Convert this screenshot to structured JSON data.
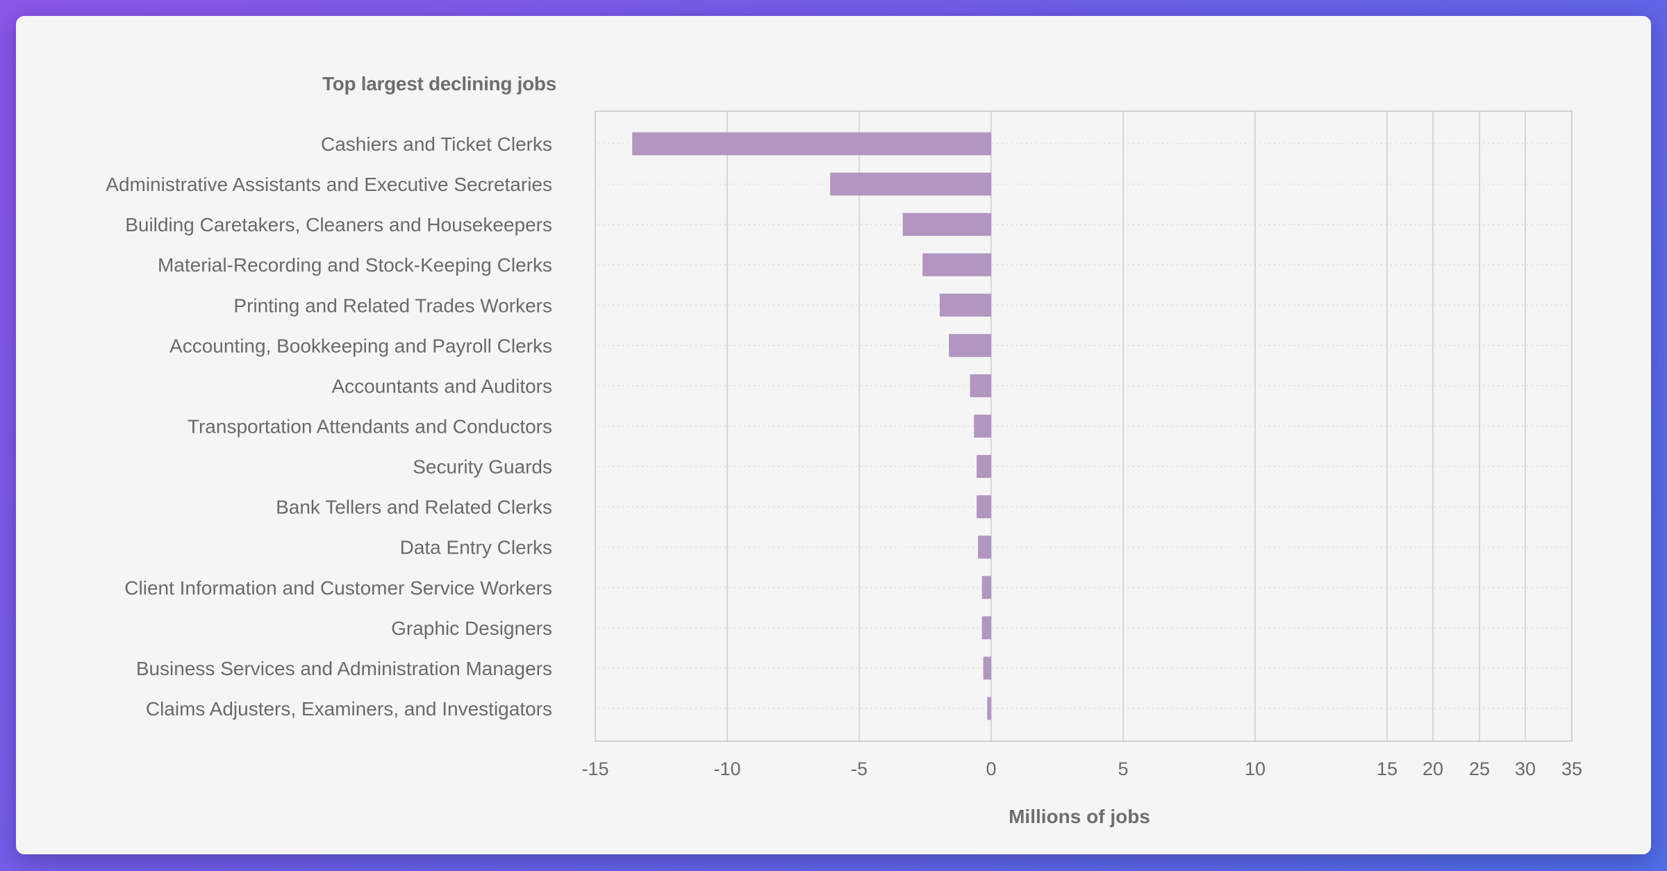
{
  "chart_data": {
    "type": "bar",
    "orientation": "horizontal",
    "title": "Top largest declining jobs",
    "xlabel": "Millions of jobs",
    "ylabel": "",
    "categories": [
      "Cashiers and Ticket Clerks",
      "Administrative Assistants and Executive Secretaries",
      "Building Caretakers, Cleaners and Housekeepers",
      "Material-Recording and Stock-Keeping Clerks",
      "Printing and Related Trades Workers",
      "Accounting, Bookkeeping and Payroll Clerks",
      "Accountants and Auditors",
      "Transportation Attendants and Conductors",
      "Security Guards",
      "Bank Tellers and Related Clerks",
      "Data Entry Clerks",
      "Client Information and Customer Service Workers",
      "Graphic Designers",
      "Business Services and Administration Managers",
      "Claims Adjusters, Examiners, and Investigators"
    ],
    "values": [
      -13.6,
      -6.1,
      -3.35,
      -2.6,
      -1.95,
      -1.6,
      -0.8,
      -0.65,
      -0.55,
      -0.55,
      -0.5,
      -0.35,
      -0.35,
      -0.3,
      -0.15
    ],
    "xticks": [
      -15,
      -10,
      -5,
      0,
      5,
      10,
      15,
      20,
      25,
      30,
      35
    ],
    "xlim": [
      -15,
      35
    ],
    "grid": true,
    "colors": {
      "bar": "#b196bf",
      "grid": "#cfcfcf",
      "frame": "#c4c4c4",
      "text": "#6a6a6a"
    }
  }
}
